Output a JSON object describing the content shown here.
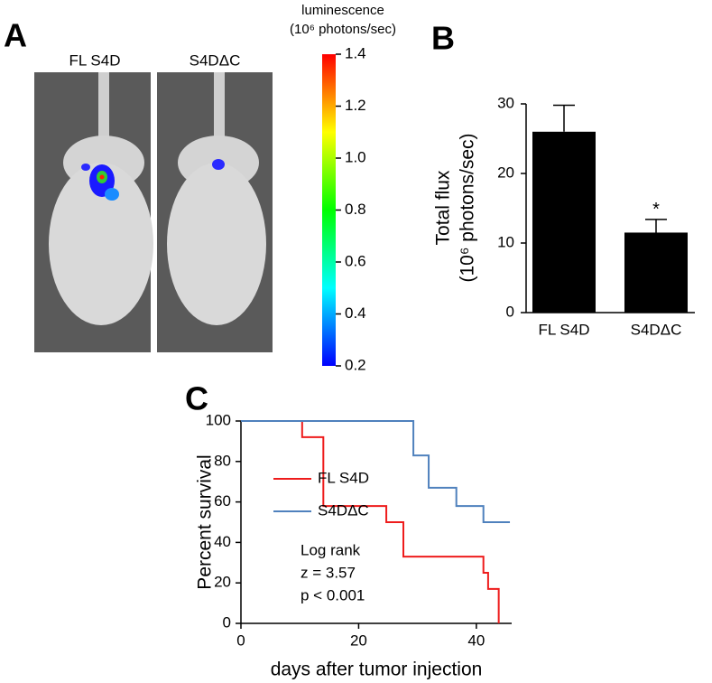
{
  "chart_data": [
    {
      "type": "colorbar",
      "panel": "A",
      "image_labels": [
        "FL S4D",
        "S4DΔC"
      ],
      "title": [
        "luminescence",
        "(10⁶ photons/sec)"
      ],
      "colormap": [
        "#0000ff",
        "#00ffff",
        "#00ff00",
        "#ffff00",
        "#ff0000"
      ],
      "ylim": [
        0.2,
        1.4
      ],
      "yticks": [
        0.2,
        0.4,
        0.6,
        0.8,
        {
          "value": 1,
          "label": "1.0"
        },
        1.2,
        1.4
      ]
    },
    {
      "type": "bar",
      "panel": "B",
      "ylabel": [
        "Total flux",
        "(10⁶ photons/sec)"
      ],
      "categories": [
        "FL S4D",
        "S4DΔC"
      ],
      "values": [
        26,
        11.5
      ],
      "errors": [
        3.8,
        1.9
      ],
      "significance": [
        null,
        "*"
      ],
      "color": "#000000",
      "ylim": [
        0,
        30
      ],
      "yticks": [
        0,
        10,
        20,
        30
      ]
    },
    {
      "type": "step",
      "panel": "C",
      "xlabel": "days after tumor injection",
      "ylabel": "Percent survival",
      "xlim": [
        0,
        46
      ],
      "xticks": [
        0,
        20,
        40
      ],
      "ylim": [
        0,
        100
      ],
      "yticks": [
        0,
        20,
        40,
        60,
        80,
        100
      ],
      "legend": "center left",
      "series": [
        {
          "name": "FL S4D",
          "color": "#ee1c1c",
          "x": [
            0,
            10.4,
            14,
            24.7,
            27.6,
            41.2,
            42,
            43.8
          ],
          "values": [
            100,
            92,
            58,
            50,
            33,
            25,
            17,
            0
          ]
        },
        {
          "name": "S4DΔC",
          "color": "#4f81bd",
          "x": [
            0,
            29.3,
            31.9,
            36.6,
            41.2,
            45.7
          ],
          "values": [
            100,
            83,
            67,
            58,
            50,
            50
          ]
        }
      ],
      "annotations": [
        "Log rank",
        "z = 3.57",
        "p < 0.001"
      ]
    }
  ]
}
